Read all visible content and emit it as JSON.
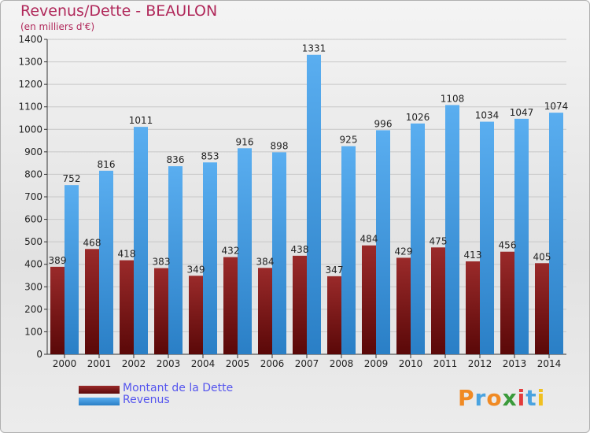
{
  "title": "Revenus/Dette - BEAULON",
  "subtitle": "(en milliers d'€)",
  "logo": {
    "text": "Proxiti",
    "letters": [
      "P",
      "r",
      "o",
      "x",
      "i",
      "t",
      "i"
    ],
    "colors": [
      "#f08a24",
      "#4aa3e0",
      "#f08a24",
      "#3a9a3a",
      "#e33b3b",
      "#4aa3e0",
      "#f0c020"
    ]
  },
  "colors": {
    "dette": "#7a1a1a",
    "revenus": "#3a8fd6",
    "title": "#b0285a",
    "legend_text": "#5555ee"
  },
  "chart_data": {
    "type": "bar",
    "title": "Revenus/Dette - BEAULON",
    "subtitle": "(en milliers d'€)",
    "categories": [
      "2000",
      "2001",
      "2002",
      "2003",
      "2004",
      "2005",
      "2006",
      "2007",
      "2008",
      "2009",
      "2010",
      "2011",
      "2012",
      "2013",
      "2014"
    ],
    "series": [
      {
        "name": "Montant de la Dette",
        "values": [
          389,
          468,
          418,
          383,
          349,
          432,
          384,
          438,
          347,
          484,
          429,
          475,
          413,
          456,
          405
        ]
      },
      {
        "name": "Revenus",
        "values": [
          752,
          816,
          1011,
          836,
          853,
          916,
          898,
          1331,
          925,
          996,
          1026,
          1108,
          1034,
          1047,
          1074
        ]
      }
    ],
    "ylim": [
      0,
      1400
    ],
    "yticks": [
      0,
      100,
      200,
      300,
      400,
      500,
      600,
      700,
      800,
      900,
      1000,
      1100,
      1200,
      1300,
      1400
    ],
    "grid": true,
    "legend": "bottom-left"
  }
}
